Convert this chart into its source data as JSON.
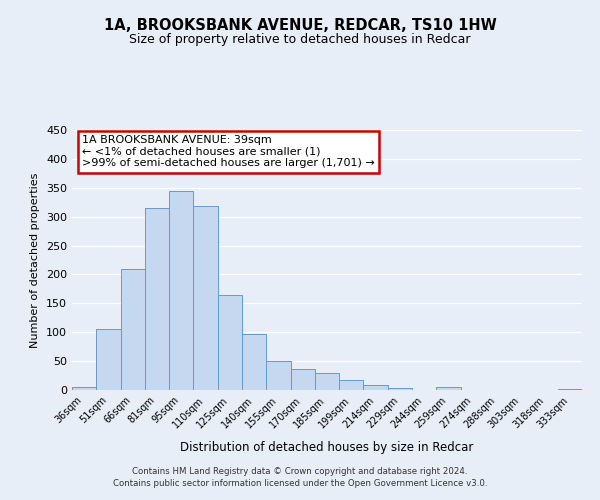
{
  "title": "1A, BROOKSBANK AVENUE, REDCAR, TS10 1HW",
  "subtitle": "Size of property relative to detached houses in Redcar",
  "xlabel": "Distribution of detached houses by size in Redcar",
  "ylabel": "Number of detached properties",
  "bar_color": "#c5d8f0",
  "bar_edge_color": "#6699cc",
  "background_color": "#e8eef8",
  "annotation_box_text": "1A BROOKSBANK AVENUE: 39sqm\n← <1% of detached houses are smaller (1)\n>99% of semi-detached houses are larger (1,701) →",
  "annotation_box_color": "#cc0000",
  "categories": [
    "36sqm",
    "51sqm",
    "66sqm",
    "81sqm",
    "95sqm",
    "110sqm",
    "125sqm",
    "140sqm",
    "155sqm",
    "170sqm",
    "185sqm",
    "199sqm",
    "214sqm",
    "229sqm",
    "244sqm",
    "259sqm",
    "274sqm",
    "288sqm",
    "303sqm",
    "318sqm",
    "333sqm"
  ],
  "values": [
    6,
    105,
    209,
    315,
    344,
    319,
    165,
    97,
    50,
    36,
    30,
    18,
    9,
    4,
    0,
    5,
    0,
    0,
    0,
    0,
    2
  ],
  "ylim": [
    0,
    450
  ],
  "yticks": [
    0,
    50,
    100,
    150,
    200,
    250,
    300,
    350,
    400,
    450
  ],
  "footer_text": "Contains HM Land Registry data © Crown copyright and database right 2024.\nContains public sector information licensed under the Open Government Licence v3.0.",
  "figsize": [
    6.0,
    5.0
  ],
  "dpi": 100
}
